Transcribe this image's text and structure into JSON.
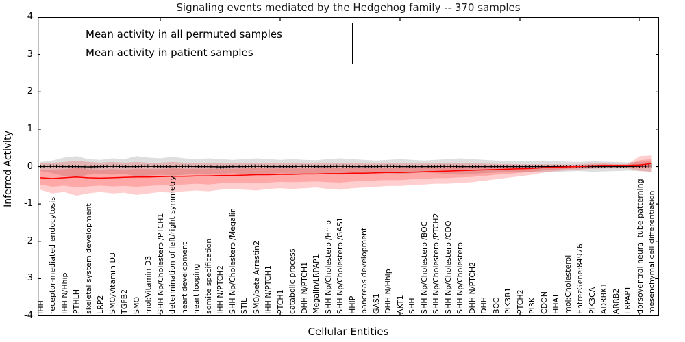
{
  "title": "Signaling events mediated by the Hedgehog family -- 370 samples",
  "legend": {
    "entries": [
      {
        "label": "Mean activity in all permuted samples",
        "color": "#000000"
      },
      {
        "label": "Mean activity in patient samples",
        "color": "#ff0000"
      }
    ]
  },
  "axes": {
    "ylabel": "Inferred Activity",
    "xlabel": "Cellular Entities",
    "ytick_labels": [
      "4",
      "3",
      "2",
      "1",
      "0",
      "-1",
      "-2",
      "-3",
      "-4"
    ],
    "ytick_values": [
      4,
      3,
      2,
      1,
      0,
      -1,
      -2,
      -3,
      -4
    ],
    "major_xtick_indices": [
      10,
      20,
      30,
      40,
      50
    ]
  },
  "colors": {
    "permuted_line": "#000000",
    "patient_line": "#ff0000",
    "permuted_band": "rgba(0,0,0,0.13)",
    "patient_band_outer": "rgba(255,0,0,0.19)",
    "patient_band_inner": "rgba(255,0,0,0.19)",
    "frame": "#000000"
  },
  "chart_data": {
    "type": "line",
    "title": "Signaling events mediated by the Hedgehog family -- 370 samples",
    "xlabel": "Cellular Entities",
    "ylabel": "Inferred Activity",
    "ylim": [
      -4,
      4
    ],
    "grid": false,
    "legend_position": "upper left",
    "categories": [
      "IHH",
      "receptor-mediated endocytosis",
      "IHH N/Hhip",
      "PTHLH",
      "skeletal system development",
      "LRP2",
      "SMO/Vitamin D3",
      "TGFB2",
      "SMO",
      "mol:Vitamin D3",
      "SHH Np/Cholesterol/PTCH1",
      "determination of left/right symmetry",
      "heart development",
      "heart looping",
      "somite specification",
      "IHH N/PTCH2",
      "SHH Np/Cholesterol/Megalin",
      "STIL",
      "SMO/beta Arrestin2",
      "IHH N/PTCH1",
      "PTCH1",
      "catabolic process",
      "DHH N/PTCH1",
      "Megalin/LRPAP1",
      "SHH Np/Cholesterol/Hhip",
      "SHH Np/Cholesterol/GAS1",
      "HHIP",
      "pancreas development",
      "GAS1",
      "DHH N/Hhip",
      "AKT1",
      "SHH",
      "SHH Np/Cholesterol/BOC",
      "SHH Np/Cholesterol/PTCH2",
      "SHH Np/Cholesterol/CDO",
      "SHH Np/Cholesterol",
      "DHH N/PTCH2",
      "DHH",
      "BOC",
      "PIK3R1",
      "PTCH2",
      "PI3K",
      "CDON",
      "HHAT",
      "mol:Cholesterol",
      "EntrezGene:84976",
      "PIK3CA",
      "ADRBK1",
      "ARRB2",
      "LRPAP1",
      "dorsoventral neural tube patterning",
      "mesenchymal cell differentiation"
    ],
    "series": [
      {
        "name": "Mean activity in all permuted samples",
        "color": "#000000",
        "values": [
          0,
          0.01,
          0,
          0,
          -0.01,
          0,
          0.01,
          0,
          0,
          0.01,
          0,
          0,
          0.01,
          0,
          0,
          -0.01,
          0,
          0,
          0.01,
          0,
          0,
          0,
          0.01,
          0,
          0,
          0.01,
          0,
          0,
          0,
          0.01,
          0,
          0,
          0,
          0,
          0.01,
          0,
          0,
          0,
          0,
          0,
          0,
          0,
          0,
          0,
          0,
          0,
          0,
          0,
          0,
          0,
          0.01,
          0.02
        ]
      },
      {
        "name": "Mean activity in patient samples",
        "color": "#ff0000",
        "values": [
          -0.3,
          -0.32,
          -0.3,
          -0.28,
          -0.3,
          -0.31,
          -0.3,
          -0.29,
          -0.28,
          -0.28,
          -0.27,
          -0.26,
          -0.26,
          -0.25,
          -0.25,
          -0.24,
          -0.24,
          -0.23,
          -0.22,
          -0.22,
          -0.21,
          -0.21,
          -0.2,
          -0.2,
          -0.19,
          -0.19,
          -0.18,
          -0.18,
          -0.17,
          -0.16,
          -0.16,
          -0.15,
          -0.14,
          -0.13,
          -0.12,
          -0.11,
          -0.1,
          -0.09,
          -0.08,
          -0.07,
          -0.06,
          -0.05,
          -0.03,
          -0.02,
          -0.01,
          0.0,
          0.02,
          0.03,
          0.03,
          0.03,
          0.04,
          0.08
        ]
      }
    ],
    "bands": [
      {
        "name": "permuted-samples-range",
        "color": "rgba(0,0,0,0.13)",
        "upper": [
          0.12,
          0.16,
          0.24,
          0.28,
          0.2,
          0.18,
          0.22,
          0.2,
          0.28,
          0.24,
          0.22,
          0.26,
          0.22,
          0.2,
          0.22,
          0.2,
          0.18,
          0.2,
          0.22,
          0.2,
          0.18,
          0.2,
          0.18,
          0.17,
          0.2,
          0.22,
          0.2,
          0.18,
          0.16,
          0.18,
          0.2,
          0.18,
          0.16,
          0.18,
          0.2,
          0.22,
          0.2,
          0.18,
          0.16,
          0.15,
          0.14,
          0.15,
          0.16,
          0.14,
          0.13,
          0.12,
          0.14,
          0.13,
          0.12,
          0.11,
          0.12,
          0.14
        ],
        "lower": [
          -0.12,
          -0.18,
          -0.26,
          -0.28,
          -0.22,
          -0.2,
          -0.22,
          -0.2,
          -0.26,
          -0.24,
          -0.22,
          -0.24,
          -0.22,
          -0.2,
          -0.22,
          -0.2,
          -0.18,
          -0.2,
          -0.22,
          -0.2,
          -0.18,
          -0.2,
          -0.18,
          -0.17,
          -0.2,
          -0.22,
          -0.2,
          -0.18,
          -0.16,
          -0.18,
          -0.2,
          -0.18,
          -0.16,
          -0.18,
          -0.2,
          -0.22,
          -0.2,
          -0.18,
          -0.16,
          -0.15,
          -0.14,
          -0.15,
          -0.16,
          -0.14,
          -0.13,
          -0.12,
          -0.14,
          -0.13,
          -0.12,
          -0.11,
          -0.12,
          -0.14
        ]
      },
      {
        "name": "patient-samples-range-outer",
        "color": "rgba(255,0,0,0.19)",
        "upper": [
          0.08,
          0.1,
          0.12,
          0.15,
          0.12,
          0.1,
          0.12,
          0.1,
          0.12,
          0.1,
          0.1,
          0.12,
          0.1,
          0.1,
          0.1,
          0.09,
          0.08,
          0.09,
          0.1,
          0.09,
          0.08,
          0.09,
          0.08,
          0.08,
          0.1,
          0.1,
          0.09,
          0.08,
          0.08,
          0.08,
          0.09,
          0.08,
          0.08,
          0.08,
          0.09,
          0.1,
          0.09,
          0.08,
          0.07,
          0.07,
          0.06,
          0.06,
          0.06,
          0.06,
          0.05,
          0.06,
          0.08,
          0.08,
          0.07,
          0.07,
          0.28,
          0.3
        ],
        "lower": [
          -0.62,
          -0.72,
          -0.68,
          -0.78,
          -0.72,
          -0.68,
          -0.72,
          -0.7,
          -0.76,
          -0.72,
          -0.68,
          -0.7,
          -0.66,
          -0.64,
          -0.66,
          -0.62,
          -0.6,
          -0.62,
          -0.64,
          -0.6,
          -0.58,
          -0.6,
          -0.58,
          -0.56,
          -0.6,
          -0.62,
          -0.58,
          -0.56,
          -0.54,
          -0.52,
          -0.52,
          -0.5,
          -0.48,
          -0.46,
          -0.46,
          -0.44,
          -0.42,
          -0.38,
          -0.34,
          -0.3,
          -0.26,
          -0.22,
          -0.16,
          -0.12,
          -0.1,
          -0.08,
          -0.06,
          -0.05,
          -0.05,
          -0.05,
          -0.12,
          -0.14
        ]
      },
      {
        "name": "patient-samples-range-inner",
        "color": "rgba(255,0,0,0.19)",
        "upper": [
          -0.09,
          -0.09,
          -0.07,
          -0.04,
          -0.07,
          -0.08,
          -0.07,
          -0.08,
          -0.06,
          -0.07,
          -0.07,
          -0.05,
          -0.06,
          -0.06,
          -0.06,
          -0.06,
          -0.06,
          -0.05,
          -0.04,
          -0.05,
          -0.05,
          -0.05,
          -0.05,
          -0.05,
          -0.03,
          -0.03,
          -0.03,
          -0.04,
          -0.03,
          -0.03,
          -0.02,
          -0.02,
          -0.02,
          -0.02,
          -0.01,
          0.0,
          0.0,
          0.0,
          0.0,
          0.01,
          0.01,
          0.01,
          0.02,
          0.02,
          0.02,
          0.03,
          0.05,
          0.06,
          0.05,
          0.05,
          0.17,
          0.2
        ],
        "lower": [
          -0.48,
          -0.54,
          -0.51,
          -0.56,
          -0.53,
          -0.51,
          -0.53,
          -0.52,
          -0.54,
          -0.52,
          -0.5,
          -0.5,
          -0.48,
          -0.46,
          -0.48,
          -0.45,
          -0.44,
          -0.44,
          -0.45,
          -0.43,
          -0.41,
          -0.42,
          -0.41,
          -0.4,
          -0.42,
          -0.43,
          -0.4,
          -0.39,
          -0.37,
          -0.36,
          -0.36,
          -0.34,
          -0.33,
          -0.31,
          -0.31,
          -0.29,
          -0.28,
          -0.25,
          -0.22,
          -0.2,
          -0.17,
          -0.14,
          -0.1,
          -0.08,
          -0.06,
          -0.04,
          -0.02,
          -0.01,
          -0.01,
          -0.01,
          -0.05,
          -0.04
        ]
      }
    ]
  }
}
